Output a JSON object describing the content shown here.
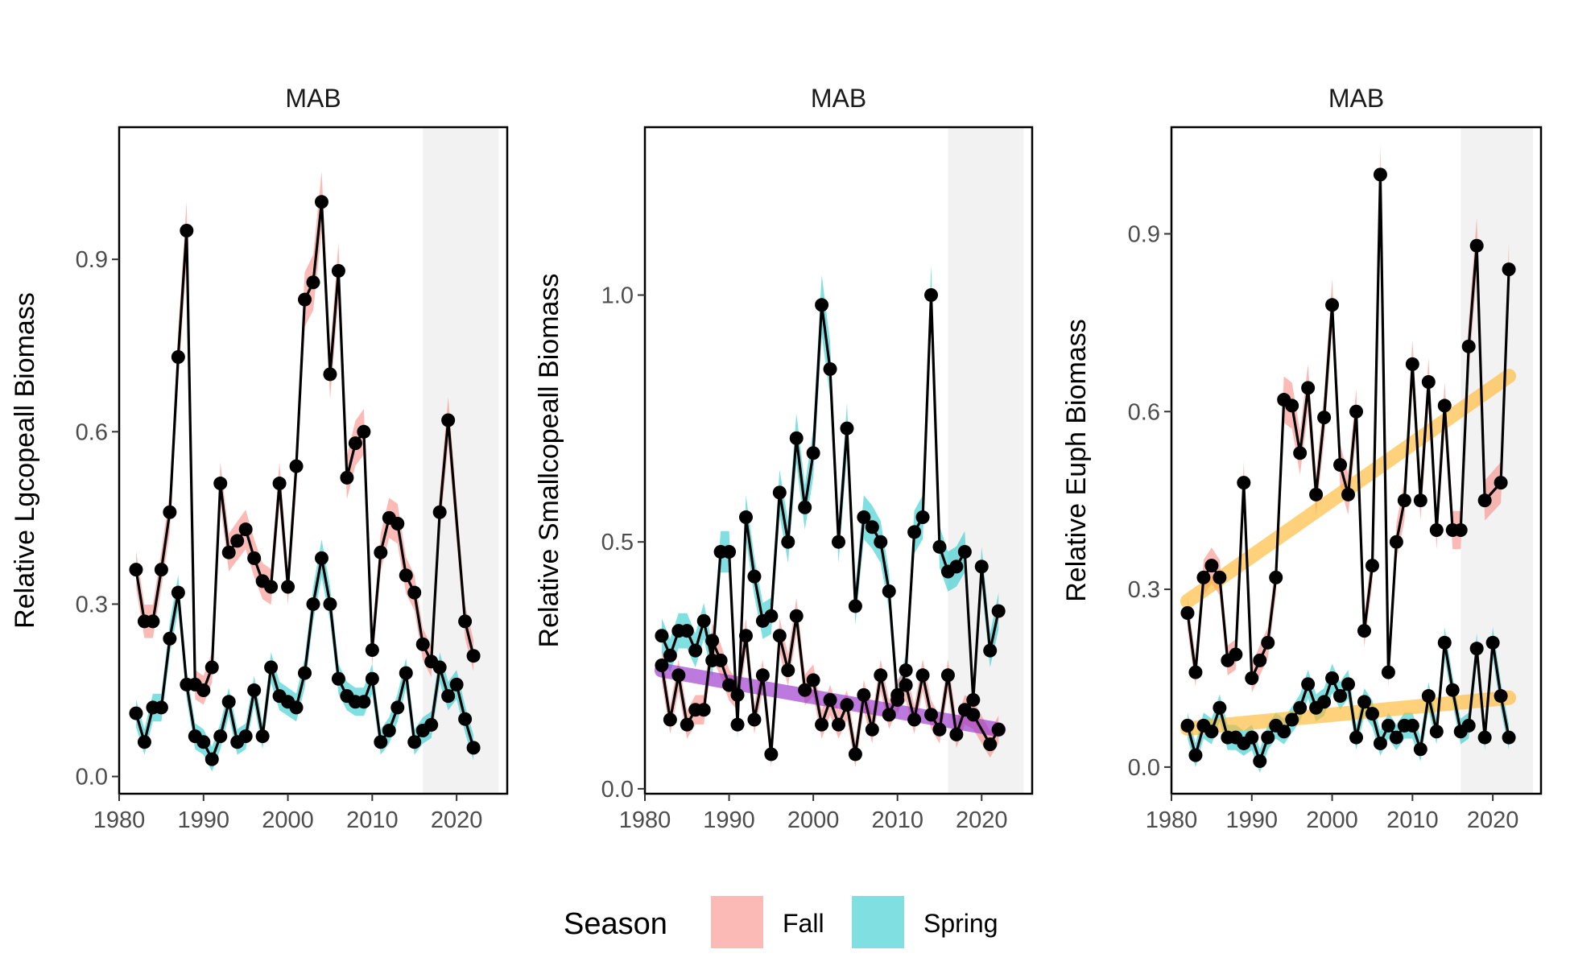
{
  "colors": {
    "fall": "#F8766D",
    "spring": "#00BFC4",
    "shade": "#F2F2F2",
    "trend_decrease": "#9933CC",
    "trend_increase": "#FFB833",
    "line": "#000000"
  },
  "legend": {
    "title": "Season",
    "items": [
      {
        "label": "Fall",
        "color": "#F8766D"
      },
      {
        "label": "Spring",
        "color": "#00BFC4"
      }
    ]
  },
  "chart_data": [
    {
      "type": "line",
      "title": "MAB",
      "ylabel": "Relative Lgcopeall Biomass",
      "xlabel": "",
      "xlim": [
        1980,
        2026
      ],
      "ylim": [
        -0.03,
        1.13
      ],
      "xticks": [
        1980,
        1990,
        2000,
        2010,
        2020
      ],
      "yticks": [
        0.0,
        0.3,
        0.6,
        0.9
      ],
      "ytick_labels": [
        "0.0",
        "0.3",
        "0.6",
        "0.9"
      ],
      "shade": [
        2016,
        2025
      ],
      "series": [
        {
          "name": "Fall",
          "x": [
            1982,
            1983,
            1984,
            1985,
            1986,
            1987,
            1988,
            1989,
            1990,
            1991,
            1992,
            1993,
            1994,
            1995,
            1996,
            1997,
            1998,
            1999,
            2000,
            2001,
            2002,
            2003,
            2004,
            2005,
            2006,
            2007,
            2008,
            2009,
            2010,
            2011,
            2012,
            2013,
            2014,
            2015,
            2016,
            2017,
            2018,
            2019,
            2021,
            2022
          ],
          "y": [
            0.36,
            0.27,
            0.27,
            0.36,
            0.46,
            0.73,
            0.95,
            0.16,
            0.15,
            0.19,
            0.51,
            0.39,
            0.41,
            0.43,
            0.38,
            0.34,
            0.33,
            0.51,
            0.33,
            0.54,
            0.83,
            0.86,
            1.0,
            0.7,
            0.88,
            0.52,
            0.58,
            0.6,
            0.22,
            0.39,
            0.45,
            0.44,
            0.35,
            0.32,
            0.23,
            0.2,
            0.46,
            0.62,
            0.27,
            0.21
          ]
        },
        {
          "name": "Spring",
          "x": [
            1982,
            1983,
            1984,
            1985,
            1986,
            1987,
            1988,
            1989,
            1990,
            1991,
            1992,
            1993,
            1994,
            1995,
            1996,
            1997,
            1998,
            1999,
            2000,
            2001,
            2002,
            2003,
            2004,
            2005,
            2006,
            2007,
            2008,
            2009,
            2010,
            2011,
            2012,
            2013,
            2014,
            2015,
            2016,
            2017,
            2018,
            2019,
            2020,
            2021,
            2022
          ],
          "y": [
            0.11,
            0.06,
            0.12,
            0.12,
            0.24,
            0.32,
            0.16,
            0.07,
            0.06,
            0.03,
            0.07,
            0.13,
            0.06,
            0.07,
            0.15,
            0.07,
            0.19,
            0.14,
            0.13,
            0.12,
            0.18,
            0.3,
            0.38,
            0.3,
            0.17,
            0.14,
            0.13,
            0.13,
            0.17,
            0.06,
            0.08,
            0.12,
            0.18,
            0.06,
            0.08,
            0.09,
            0.19,
            0.14,
            0.16,
            0.1,
            0.05
          ]
        }
      ],
      "trends": []
    },
    {
      "type": "line",
      "title": "MAB",
      "ylabel": "Relative Smallcopeall Biomass",
      "xlabel": "",
      "xlim": [
        1980,
        2026
      ],
      "ylim": [
        -0.01,
        1.34
      ],
      "xticks": [
        1980,
        1990,
        2000,
        2010,
        2020
      ],
      "yticks": [
        0.0,
        0.5,
        1.0
      ],
      "ytick_labels": [
        "0.0",
        "0.5",
        "1.0"
      ],
      "shade": [
        2016,
        2025
      ],
      "series": [
        {
          "name": "Spring",
          "x": [
            1982,
            1983,
            1984,
            1985,
            1986,
            1987,
            1988,
            1989,
            1990,
            1991,
            1992,
            1993,
            1994,
            1995,
            1996,
            1997,
            1998,
            1999,
            2000,
            2001,
            2002,
            2003,
            2004,
            2005,
            2006,
            2007,
            2008,
            2009,
            2010,
            2011,
            2012,
            2013,
            2014,
            2015,
            2016,
            2017,
            2018,
            2019,
            2020,
            2021,
            2022
          ],
          "y": [
            0.31,
            0.27,
            0.32,
            0.32,
            0.28,
            0.34,
            0.26,
            0.48,
            0.48,
            0.13,
            0.55,
            0.43,
            0.34,
            0.35,
            0.6,
            0.5,
            0.71,
            0.57,
            0.68,
            0.98,
            0.85,
            0.5,
            0.73,
            0.37,
            0.55,
            0.53,
            0.5,
            0.4,
            0.18,
            0.24,
            0.52,
            0.55,
            1.0,
            0.49,
            0.44,
            0.45,
            0.48,
            0.18,
            0.45,
            0.28,
            0.36
          ]
        },
        {
          "name": "Fall",
          "x": [
            1982,
            1983,
            1984,
            1985,
            1986,
            1987,
            1988,
            1989,
            1990,
            1991,
            1992,
            1993,
            1994,
            1995,
            1996,
            1997,
            1998,
            1999,
            2000,
            2001,
            2002,
            2003,
            2004,
            2005,
            2006,
            2007,
            2008,
            2009,
            2010,
            2011,
            2012,
            2013,
            2014,
            2015,
            2016,
            2017,
            2018,
            2019,
            2021,
            2022
          ],
          "y": [
            0.25,
            0.14,
            0.23,
            0.13,
            0.16,
            0.16,
            0.3,
            0.26,
            0.21,
            0.19,
            0.31,
            0.14,
            0.23,
            0.07,
            0.31,
            0.24,
            0.35,
            0.2,
            0.22,
            0.13,
            0.18,
            0.13,
            0.17,
            0.07,
            0.19,
            0.12,
            0.23,
            0.15,
            0.19,
            0.21,
            0.14,
            0.23,
            0.15,
            0.12,
            0.23,
            0.11,
            0.16,
            0.15,
            0.09,
            0.12
          ]
        }
      ],
      "trends": [
        {
          "x": [
            1982,
            2022
          ],
          "y": [
            0.24,
            0.12
          ],
          "color": "#9933CC"
        }
      ]
    },
    {
      "type": "line",
      "title": "MAB",
      "ylabel": "Relative Euph Biomass",
      "xlabel": "",
      "xlim": [
        1980,
        2026
      ],
      "ylim": [
        -0.045,
        1.08
      ],
      "xticks": [
        1980,
        1990,
        2000,
        2010,
        2020
      ],
      "yticks": [
        0.0,
        0.3,
        0.6,
        0.9
      ],
      "ytick_labels": [
        "0.0",
        "0.3",
        "0.6",
        "0.9"
      ],
      "shade": [
        2016,
        2025
      ],
      "series": [
        {
          "name": "Fall",
          "x": [
            1982,
            1983,
            1984,
            1985,
            1986,
            1987,
            1988,
            1989,
            1990,
            1991,
            1992,
            1993,
            1994,
            1995,
            1996,
            1997,
            1998,
            1999,
            2000,
            2001,
            2002,
            2003,
            2004,
            2005,
            2006,
            2007,
            2008,
            2009,
            2010,
            2011,
            2012,
            2013,
            2014,
            2015,
            2016,
            2017,
            2018,
            2019,
            2021,
            2022
          ],
          "y": [
            0.26,
            0.16,
            0.32,
            0.34,
            0.32,
            0.18,
            0.19,
            0.48,
            0.15,
            0.18,
            0.21,
            0.32,
            0.62,
            0.61,
            0.53,
            0.64,
            0.46,
            0.59,
            0.78,
            0.51,
            0.46,
            0.6,
            0.23,
            0.34,
            1.0,
            0.16,
            0.38,
            0.45,
            0.68,
            0.45,
            0.65,
            0.4,
            0.61,
            0.4,
            0.4,
            0.71,
            0.88,
            0.45,
            0.48,
            0.84
          ]
        },
        {
          "name": "Spring",
          "x": [
            1982,
            1983,
            1984,
            1985,
            1986,
            1987,
            1988,
            1989,
            1990,
            1991,
            1992,
            1993,
            1994,
            1995,
            1996,
            1997,
            1998,
            1999,
            2000,
            2001,
            2002,
            2003,
            2004,
            2005,
            2006,
            2007,
            2008,
            2009,
            2010,
            2011,
            2012,
            2013,
            2014,
            2015,
            2016,
            2017,
            2018,
            2019,
            2020,
            2021,
            2022
          ],
          "y": [
            0.07,
            0.02,
            0.07,
            0.06,
            0.1,
            0.05,
            0.05,
            0.04,
            0.05,
            0.01,
            0.05,
            0.07,
            0.06,
            0.08,
            0.1,
            0.14,
            0.1,
            0.11,
            0.15,
            0.12,
            0.14,
            0.05,
            0.11,
            0.09,
            0.04,
            0.07,
            0.05,
            0.07,
            0.07,
            0.03,
            0.12,
            0.06,
            0.21,
            0.13,
            0.06,
            0.07,
            0.2,
            0.05,
            0.21,
            0.12,
            0.05
          ]
        }
      ],
      "trends": [
        {
          "x": [
            1982,
            2022
          ],
          "y": [
            0.28,
            0.66
          ],
          "color": "#FFB833"
        },
        {
          "x": [
            1982,
            2022
          ],
          "y": [
            0.065,
            0.117
          ],
          "color": "#FFB833"
        }
      ]
    }
  ]
}
